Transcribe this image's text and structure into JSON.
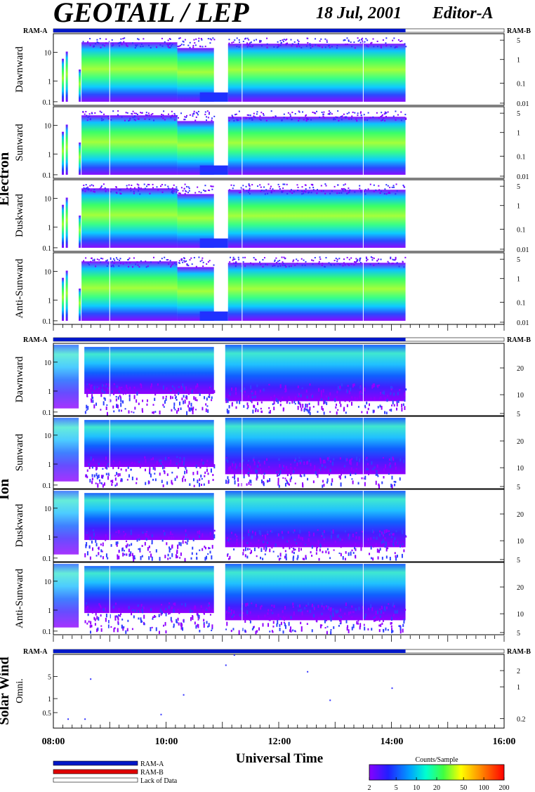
{
  "header": {
    "title": "GEOTAIL / LEP",
    "date": "18 Jul, 2001",
    "editor": "Editor-A"
  },
  "sections": [
    {
      "label": "Electron",
      "ram_left": "RAM-A",
      "ram_right": "RAM-B",
      "panels": [
        "Dawnward",
        "Sunward",
        "Duskward",
        "Anti-Sunward"
      ],
      "left_ticks": [
        "10",
        "1",
        "0.1"
      ],
      "right_ticks": [
        "5",
        "1",
        "0.1",
        "0.01"
      ]
    },
    {
      "label": "Ion",
      "ram_left": "RAM-A",
      "ram_right": "RAM-B",
      "panels": [
        "Dawnward",
        "Sunward",
        "Duskward",
        "Anti-Sunward"
      ],
      "left_ticks": [
        "10",
        "1",
        "0.1"
      ],
      "right_ticks": [
        "20",
        "10",
        "5"
      ]
    },
    {
      "label": "Solar Wind",
      "ram_left": "RAM-A",
      "ram_right": "RAM-B",
      "panels": [
        "Omni."
      ],
      "left_ticks": [
        "5",
        "1",
        "0.5"
      ],
      "right_ticks": [
        "2",
        "1",
        "0.2"
      ]
    }
  ],
  "x_axis": {
    "label": "Universal Time",
    "ticks": [
      "08:00",
      "10:00",
      "12:00",
      "14:00",
      "16:00"
    ]
  },
  "legend": {
    "items": [
      {
        "label": "RAM-A",
        "color": "#0018c8"
      },
      {
        "label": "RAM-B",
        "color": "#e00000"
      },
      {
        "label": "Lack of Data",
        "color": "#ffffff"
      }
    ]
  },
  "colorbar": {
    "title": "Counts/Sample",
    "ticks": [
      "2",
      "5",
      "10",
      "20",
      "50",
      "100",
      "200"
    ]
  },
  "chart_data": {
    "type": "heatmap",
    "title": "GEOTAIL / LEP",
    "xlabel": "Universal Time",
    "x_range_hours": [
      8,
      16
    ],
    "data_coverage_hours": [
      8.0,
      14.25
    ],
    "ram_mode": "RAM-A",
    "electron_gaps_hours": [
      [
        10.85,
        11.1
      ]
    ],
    "ion_gaps_hours": [
      [
        8.45,
        8.55
      ],
      [
        10.85,
        11.05
      ]
    ],
    "solar_wind_points": [
      {
        "t": 8.25,
        "v": 0.4
      },
      {
        "t": 8.55,
        "v": 0.4
      },
      {
        "t": 8.65,
        "v": 2.8
      },
      {
        "t": 9.9,
        "v": 0.5
      },
      {
        "t": 10.3,
        "v": 1.3
      },
      {
        "t": 11.05,
        "v": 5.5
      },
      {
        "t": 11.2,
        "v": 9
      },
      {
        "t": 12.5,
        "v": 4.0
      },
      {
        "t": 12.9,
        "v": 1.0
      },
      {
        "t": 14.0,
        "v": 1.8
      }
    ]
  }
}
